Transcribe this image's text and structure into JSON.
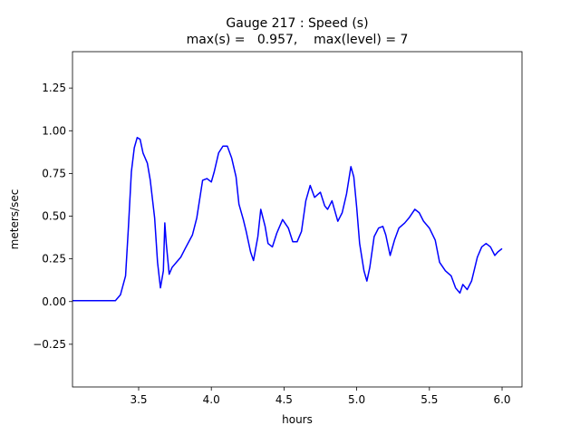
{
  "chart_data": {
    "type": "line",
    "title": "Gauge 217 : Speed (s)",
    "subtitle": "max(s) =   0.957,    max(level) = 7",
    "x_label": "hours",
    "y_label": "meters/sec",
    "xlim": [
      3.045,
      6.137
    ],
    "ylim": [
      -0.5,
      1.463
    ],
    "xticks": [
      3.5,
      {
        "value": 4.0,
        "label": "4.0"
      },
      4.5,
      {
        "value": 5.0,
        "label": "5.0"
      },
      5.5,
      {
        "value": 6.0,
        "label": "6.0"
      }
    ],
    "yticks": [
      {
        "value": -0.25,
        "label": "−0.25"
      },
      {
        "value": 0,
        "label": "0.00"
      },
      0.25,
      {
        "value": 0.5,
        "label": "0.50"
      },
      0.75,
      {
        "value": 1.0,
        "label": "1.00"
      },
      1.25
    ],
    "series": [
      {
        "name": "s",
        "color": "#0000ff",
        "x": [
          3.045,
          3.34,
          3.375,
          3.41,
          3.43,
          3.45,
          3.47,
          3.49,
          3.51,
          3.53,
          3.56,
          3.58,
          3.61,
          3.63,
          3.65,
          3.67,
          3.68,
          3.69,
          3.71,
          3.73,
          3.76,
          3.79,
          3.82,
          3.87,
          3.9,
          3.94,
          3.97,
          4.0,
          4.02,
          4.05,
          4.08,
          4.11,
          4.14,
          4.17,
          4.19,
          4.22,
          4.24,
          4.27,
          4.29,
          4.32,
          4.34,
          4.37,
          4.39,
          4.42,
          4.45,
          4.49,
          4.53,
          4.56,
          4.59,
          4.62,
          4.65,
          4.68,
          4.71,
          4.75,
          4.78,
          4.8,
          4.83,
          4.87,
          4.9,
          4.93,
          4.96,
          4.98,
          5.0,
          5.02,
          5.05,
          5.07,
          5.09,
          5.12,
          5.15,
          5.18,
          5.2,
          5.23,
          5.26,
          5.29,
          5.33,
          5.36,
          5.4,
          5.43,
          5.46,
          5.5,
          5.54,
          5.57,
          5.61,
          5.65,
          5.68,
          5.71,
          5.73,
          5.76,
          5.79,
          5.83,
          5.86,
          5.89,
          5.92,
          5.95,
          5.97,
          6.0
        ],
        "values": [
          0.005,
          0.005,
          0.04,
          0.15,
          0.44,
          0.76,
          0.9,
          0.96,
          0.95,
          0.87,
          0.81,
          0.71,
          0.49,
          0.23,
          0.08,
          0.18,
          0.46,
          0.34,
          0.16,
          0.2,
          0.23,
          0.26,
          0.31,
          0.39,
          0.49,
          0.71,
          0.72,
          0.7,
          0.76,
          0.87,
          0.91,
          0.91,
          0.84,
          0.73,
          0.57,
          0.48,
          0.41,
          0.29,
          0.24,
          0.38,
          0.54,
          0.44,
          0.34,
          0.32,
          0.4,
          0.48,
          0.43,
          0.35,
          0.35,
          0.41,
          0.59,
          0.68,
          0.61,
          0.64,
          0.56,
          0.54,
          0.59,
          0.47,
          0.52,
          0.63,
          0.79,
          0.73,
          0.55,
          0.34,
          0.18,
          0.12,
          0.2,
          0.38,
          0.43,
          0.44,
          0.39,
          0.27,
          0.36,
          0.43,
          0.46,
          0.49,
          0.54,
          0.52,
          0.47,
          0.43,
          0.36,
          0.23,
          0.18,
          0.15,
          0.08,
          0.05,
          0.1,
          0.07,
          0.12,
          0.26,
          0.32,
          0.34,
          0.32,
          0.27,
          0.29,
          0.31
        ]
      }
    ]
  }
}
